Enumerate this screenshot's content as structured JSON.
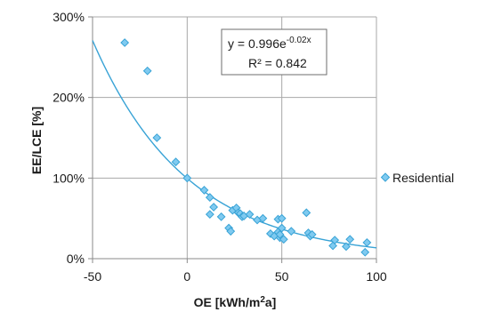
{
  "chart_data": {
    "type": "scatter",
    "xlabel": "OE [kWh/m²a]",
    "ylabel": "EE/LCE [%]",
    "xlim": [
      -50,
      100
    ],
    "ylim": [
      0,
      300
    ],
    "x_ticks": [
      "-50",
      "0",
      "50",
      "100"
    ],
    "y_ticks": [
      "0%",
      "100%",
      "200%",
      "300%"
    ],
    "grid": true,
    "legend_position": "right",
    "series": [
      {
        "name": "Residential",
        "color": "#39a3d6",
        "marker": "diamond",
        "points": [
          [
            -33,
            268
          ],
          [
            -21,
            233
          ],
          [
            -16,
            150
          ],
          [
            -6,
            120
          ],
          [
            0,
            100
          ],
          [
            9,
            85
          ],
          [
            12,
            76
          ],
          [
            12,
            55
          ],
          [
            14,
            64
          ],
          [
            18,
            52
          ],
          [
            22,
            38
          ],
          [
            23,
            34
          ],
          [
            24,
            60
          ],
          [
            26,
            63
          ],
          [
            27,
            57
          ],
          [
            28,
            56
          ],
          [
            29,
            52
          ],
          [
            30,
            53
          ],
          [
            33,
            55
          ],
          [
            37,
            48
          ],
          [
            40,
            50
          ],
          [
            44,
            31
          ],
          [
            46,
            28
          ],
          [
            48,
            49
          ],
          [
            48,
            33
          ],
          [
            49,
            26
          ],
          [
            49,
            30
          ],
          [
            50,
            50
          ],
          [
            50,
            38
          ],
          [
            51,
            24
          ],
          [
            55,
            34
          ],
          [
            63,
            57
          ],
          [
            64,
            32
          ],
          [
            65,
            28
          ],
          [
            66,
            30
          ],
          [
            77,
            16
          ],
          [
            78,
            23
          ],
          [
            84,
            15
          ],
          [
            86,
            24
          ],
          [
            94,
            8
          ],
          [
            95,
            20
          ]
        ]
      }
    ],
    "trendline": {
      "type": "exponential",
      "color": "#39a3d6",
      "a": 0.996,
      "b": -0.02,
      "equation_main": "y = 0.996e",
      "equation_exp": "-0.02x",
      "r2_label": "R² = 0.842"
    }
  }
}
